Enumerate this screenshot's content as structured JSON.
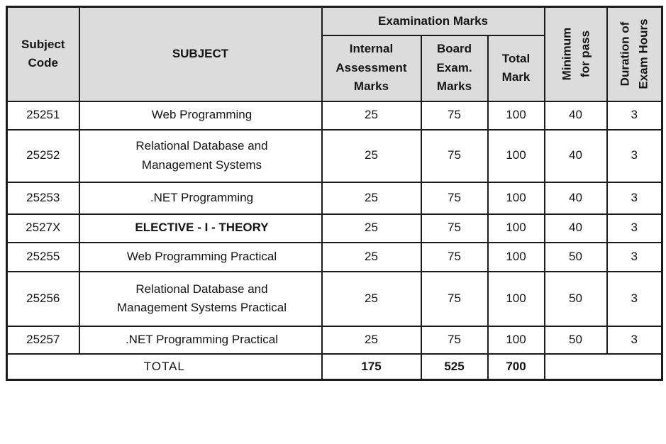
{
  "colors": {
    "header_bg": "#dcdcdc",
    "border": "#1b1b1b",
    "text": "#151515",
    "page_bg": "#ffffff"
  },
  "table": {
    "header": {
      "subject_code": "Subject\nCode",
      "subject": "SUBJECT",
      "examination_marks": "Examination Marks",
      "internal_assessment": "Internal\nAssessment\nMarks",
      "board_exam": "Board\nExam.\nMarks",
      "total_mark": "Total\nMark",
      "minimum_for_pass": "Minimum\nfor pass",
      "duration_of_exam": "Duration of\nExam Hours"
    },
    "rows": [
      {
        "code": "25251",
        "subject": "Web Programming",
        "bold": false,
        "internal": "25",
        "board": "75",
        "total": "100",
        "min_pass": "40",
        "duration": "3"
      },
      {
        "code": "25252",
        "subject": "Relational Database and\nManagement Systems",
        "bold": false,
        "internal": "25",
        "board": "75",
        "total": "100",
        "min_pass": "40",
        "duration": "3"
      },
      {
        "code": "25253",
        "subject": ".NET  Programming",
        "bold": false,
        "internal": "25",
        "board": "75",
        "total": "100",
        "min_pass": "40",
        "duration": "3"
      },
      {
        "code": "2527X",
        "subject": "ELECTIVE - I - THEORY",
        "bold": true,
        "internal": "25",
        "board": "75",
        "total": "100",
        "min_pass": "40",
        "duration": "3"
      },
      {
        "code": "25255",
        "subject": "Web Programming Practical",
        "bold": false,
        "internal": "25",
        "board": "75",
        "total": "100",
        "min_pass": "50",
        "duration": "3"
      },
      {
        "code": "25256",
        "subject": "Relational Database and\nManagement Systems Practical",
        "bold": false,
        "internal": "25",
        "board": "75",
        "total": "100",
        "min_pass": "50",
        "duration": "3"
      },
      {
        "code": "25257",
        "subject": ".NET  Programming Practical",
        "bold": false,
        "internal": "25",
        "board": "75",
        "total": "100",
        "min_pass": "50",
        "duration": "3"
      }
    ],
    "total": {
      "label": "TOTAL",
      "internal": "175",
      "board": "525",
      "total": "700"
    }
  }
}
